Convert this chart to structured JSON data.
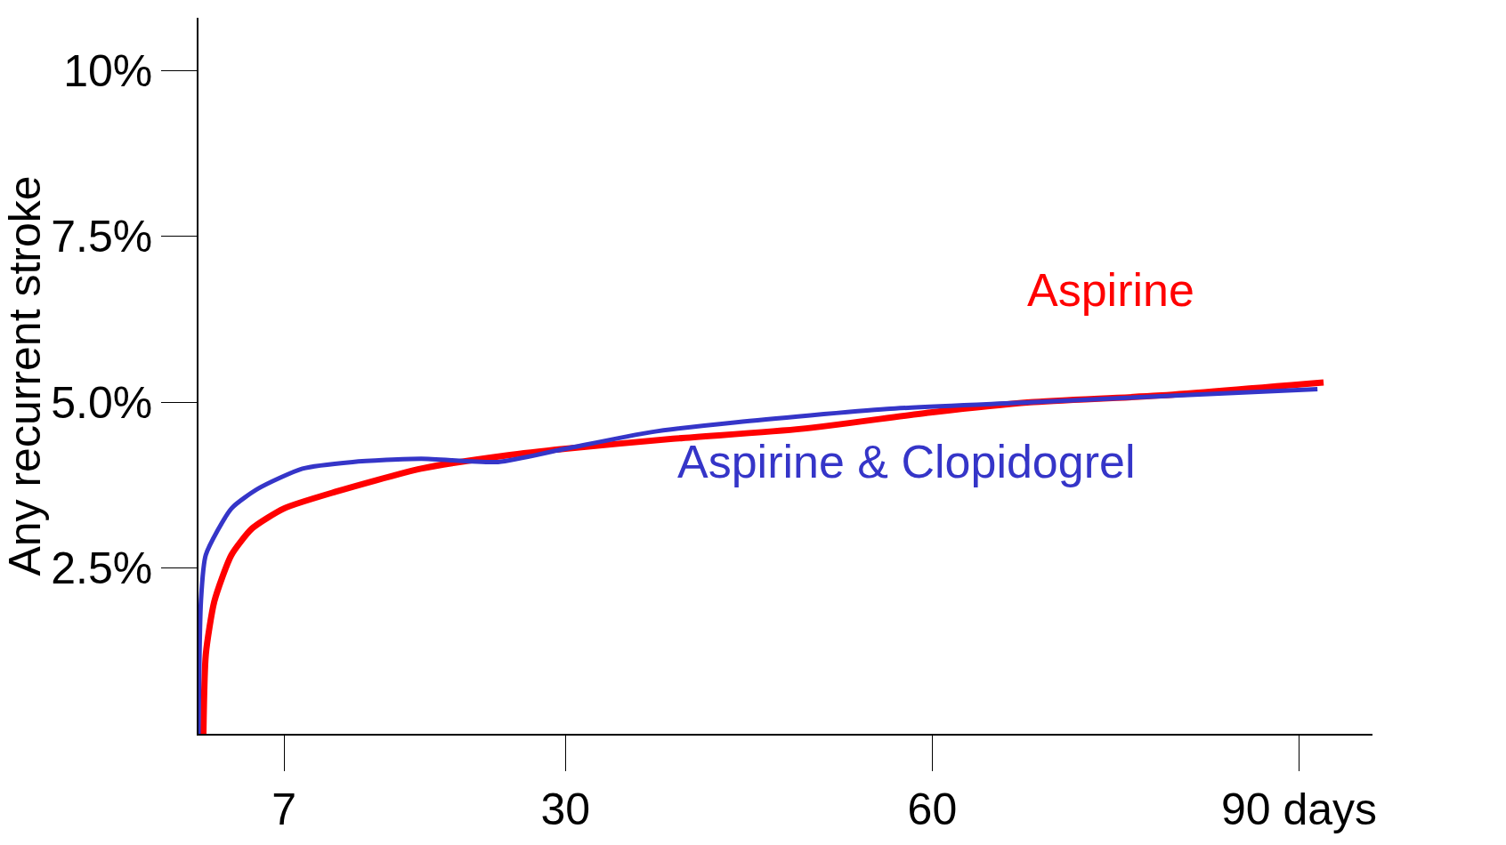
{
  "chart_data": {
    "type": "line",
    "ylabel": "Any recurrent stroke",
    "xlim": [
      0,
      96
    ],
    "ylim": [
      0,
      10.8
    ],
    "xticks": [
      7,
      30,
      60,
      {
        "value": 90,
        "label": "90 days"
      }
    ],
    "yticks": [
      {
        "value": 2.5,
        "label": "2.5%"
      },
      {
        "value": 5,
        "label": "5.0%"
      },
      {
        "value": 7.5,
        "label": "7.5%"
      },
      {
        "value": 10,
        "label": "10%"
      }
    ],
    "grid": false,
    "legend": false,
    "marker": "none",
    "line_style": "solid",
    "series": [
      {
        "name": "Aspirine",
        "color": "#ff0000",
        "x": [
          0.4,
          0.6,
          1.3,
          2.7,
          4.4,
          7,
          11.2,
          18.2,
          25.2,
          30,
          38.8,
          49.3,
          60,
          68,
          78.4,
          92
        ],
        "values": [
          0,
          1.2,
          2.0,
          2.7,
          3.1,
          3.4,
          3.65,
          4.0,
          4.2,
          4.3,
          4.45,
          4.6,
          4.85,
          5.0,
          5.1,
          5.3
        ]
      },
      {
        "name": "Aspirine & Clopidogrel",
        "color": "#3535c8",
        "x": [
          0,
          0.2,
          0.6,
          2.7,
          4.9,
          8.5,
          12.6,
          18.2,
          24.5,
          30,
          37,
          44,
          56.3,
          68,
          91.5
        ],
        "values": [
          0,
          2.0,
          2.7,
          3.4,
          3.7,
          4.0,
          4.1,
          4.15,
          4.1,
          4.3,
          4.55,
          4.7,
          4.9,
          5.0,
          5.2
        ]
      }
    ]
  }
}
